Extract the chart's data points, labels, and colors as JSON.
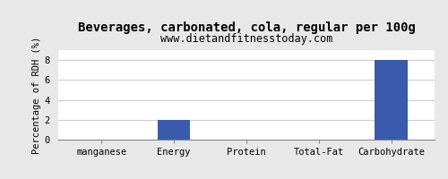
{
  "title": "Beverages, carbonated, cola, regular per 100g",
  "subtitle": "www.dietandfitnesstoday.com",
  "categories": [
    "manganese",
    "Energy",
    "Protein",
    "Total-Fat",
    "Carbohydrate"
  ],
  "values": [
    0,
    2,
    0,
    0,
    8
  ],
  "bar_color": "#3a5aab",
  "ylabel": "Percentage of RDH (%)",
  "ylim": [
    0,
    9
  ],
  "yticks": [
    0,
    2,
    4,
    6,
    8
  ],
  "background_color": "#e8e8e8",
  "plot_bg_color": "#ffffff",
  "title_fontsize": 10,
  "subtitle_fontsize": 8.5,
  "tick_fontsize": 7.5,
  "ylabel_fontsize": 7.5,
  "bar_width": 0.45
}
